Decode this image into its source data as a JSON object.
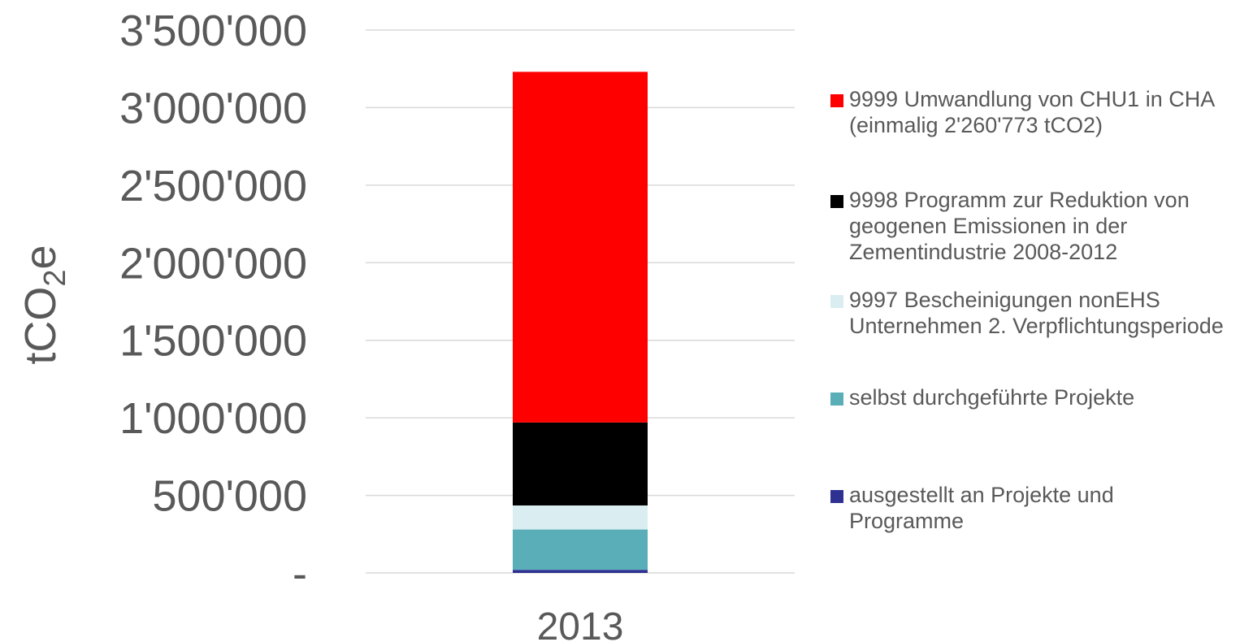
{
  "chart_data": {
    "type": "bar",
    "stacked": true,
    "categories": [
      "2013"
    ],
    "series": [
      {
        "name": "ausgestellt an Projekte und Programme",
        "color": "#2E3192",
        "values": [
          20000
        ]
      },
      {
        "name": "selbst durchgeführte Projekte",
        "color": "#5AAEB8",
        "values": [
          260000
        ]
      },
      {
        "name": "9997 Bescheinigungen nonEHS Unternehmen 2. Verpflichtungsperiode",
        "color": "#DAEEF1",
        "values": [
          155000
        ]
      },
      {
        "name": "9998 Programm zur Reduktion von geogenen Emissionen in der Zementindustrie 2008-2012",
        "color": "#000000",
        "values": [
          535000
        ]
      },
      {
        "name": "9999 Umwandlung von CHU1 in CHA (einmalig 2'260'773 tCO2)",
        "color": "#FF0000",
        "values": [
          2260773
        ]
      }
    ],
    "ylim": [
      0,
      3500000
    ],
    "yticks": [
      {
        "value": 0,
        "label": "-"
      },
      {
        "value": 500000,
        "label": "500'000"
      },
      {
        "value": 1000000,
        "label": "1'000'000"
      },
      {
        "value": 1500000,
        "label": "1'500'000"
      },
      {
        "value": 2000000,
        "label": "2'000'000"
      },
      {
        "value": 2500000,
        "label": "2'500'000"
      },
      {
        "value": 3000000,
        "label": "3'000'000"
      },
      {
        "value": 3500000,
        "label": "3'500'000"
      }
    ],
    "ylabel": {
      "main": "tCO",
      "sub": "2",
      "tail": "e"
    },
    "xlabel": "",
    "title": "",
    "grid": true,
    "legend_position": "right",
    "legend_order": [
      4,
      3,
      2,
      1,
      0
    ],
    "colors": {
      "gridline": "#D9D9D9",
      "text": "#595959"
    }
  }
}
